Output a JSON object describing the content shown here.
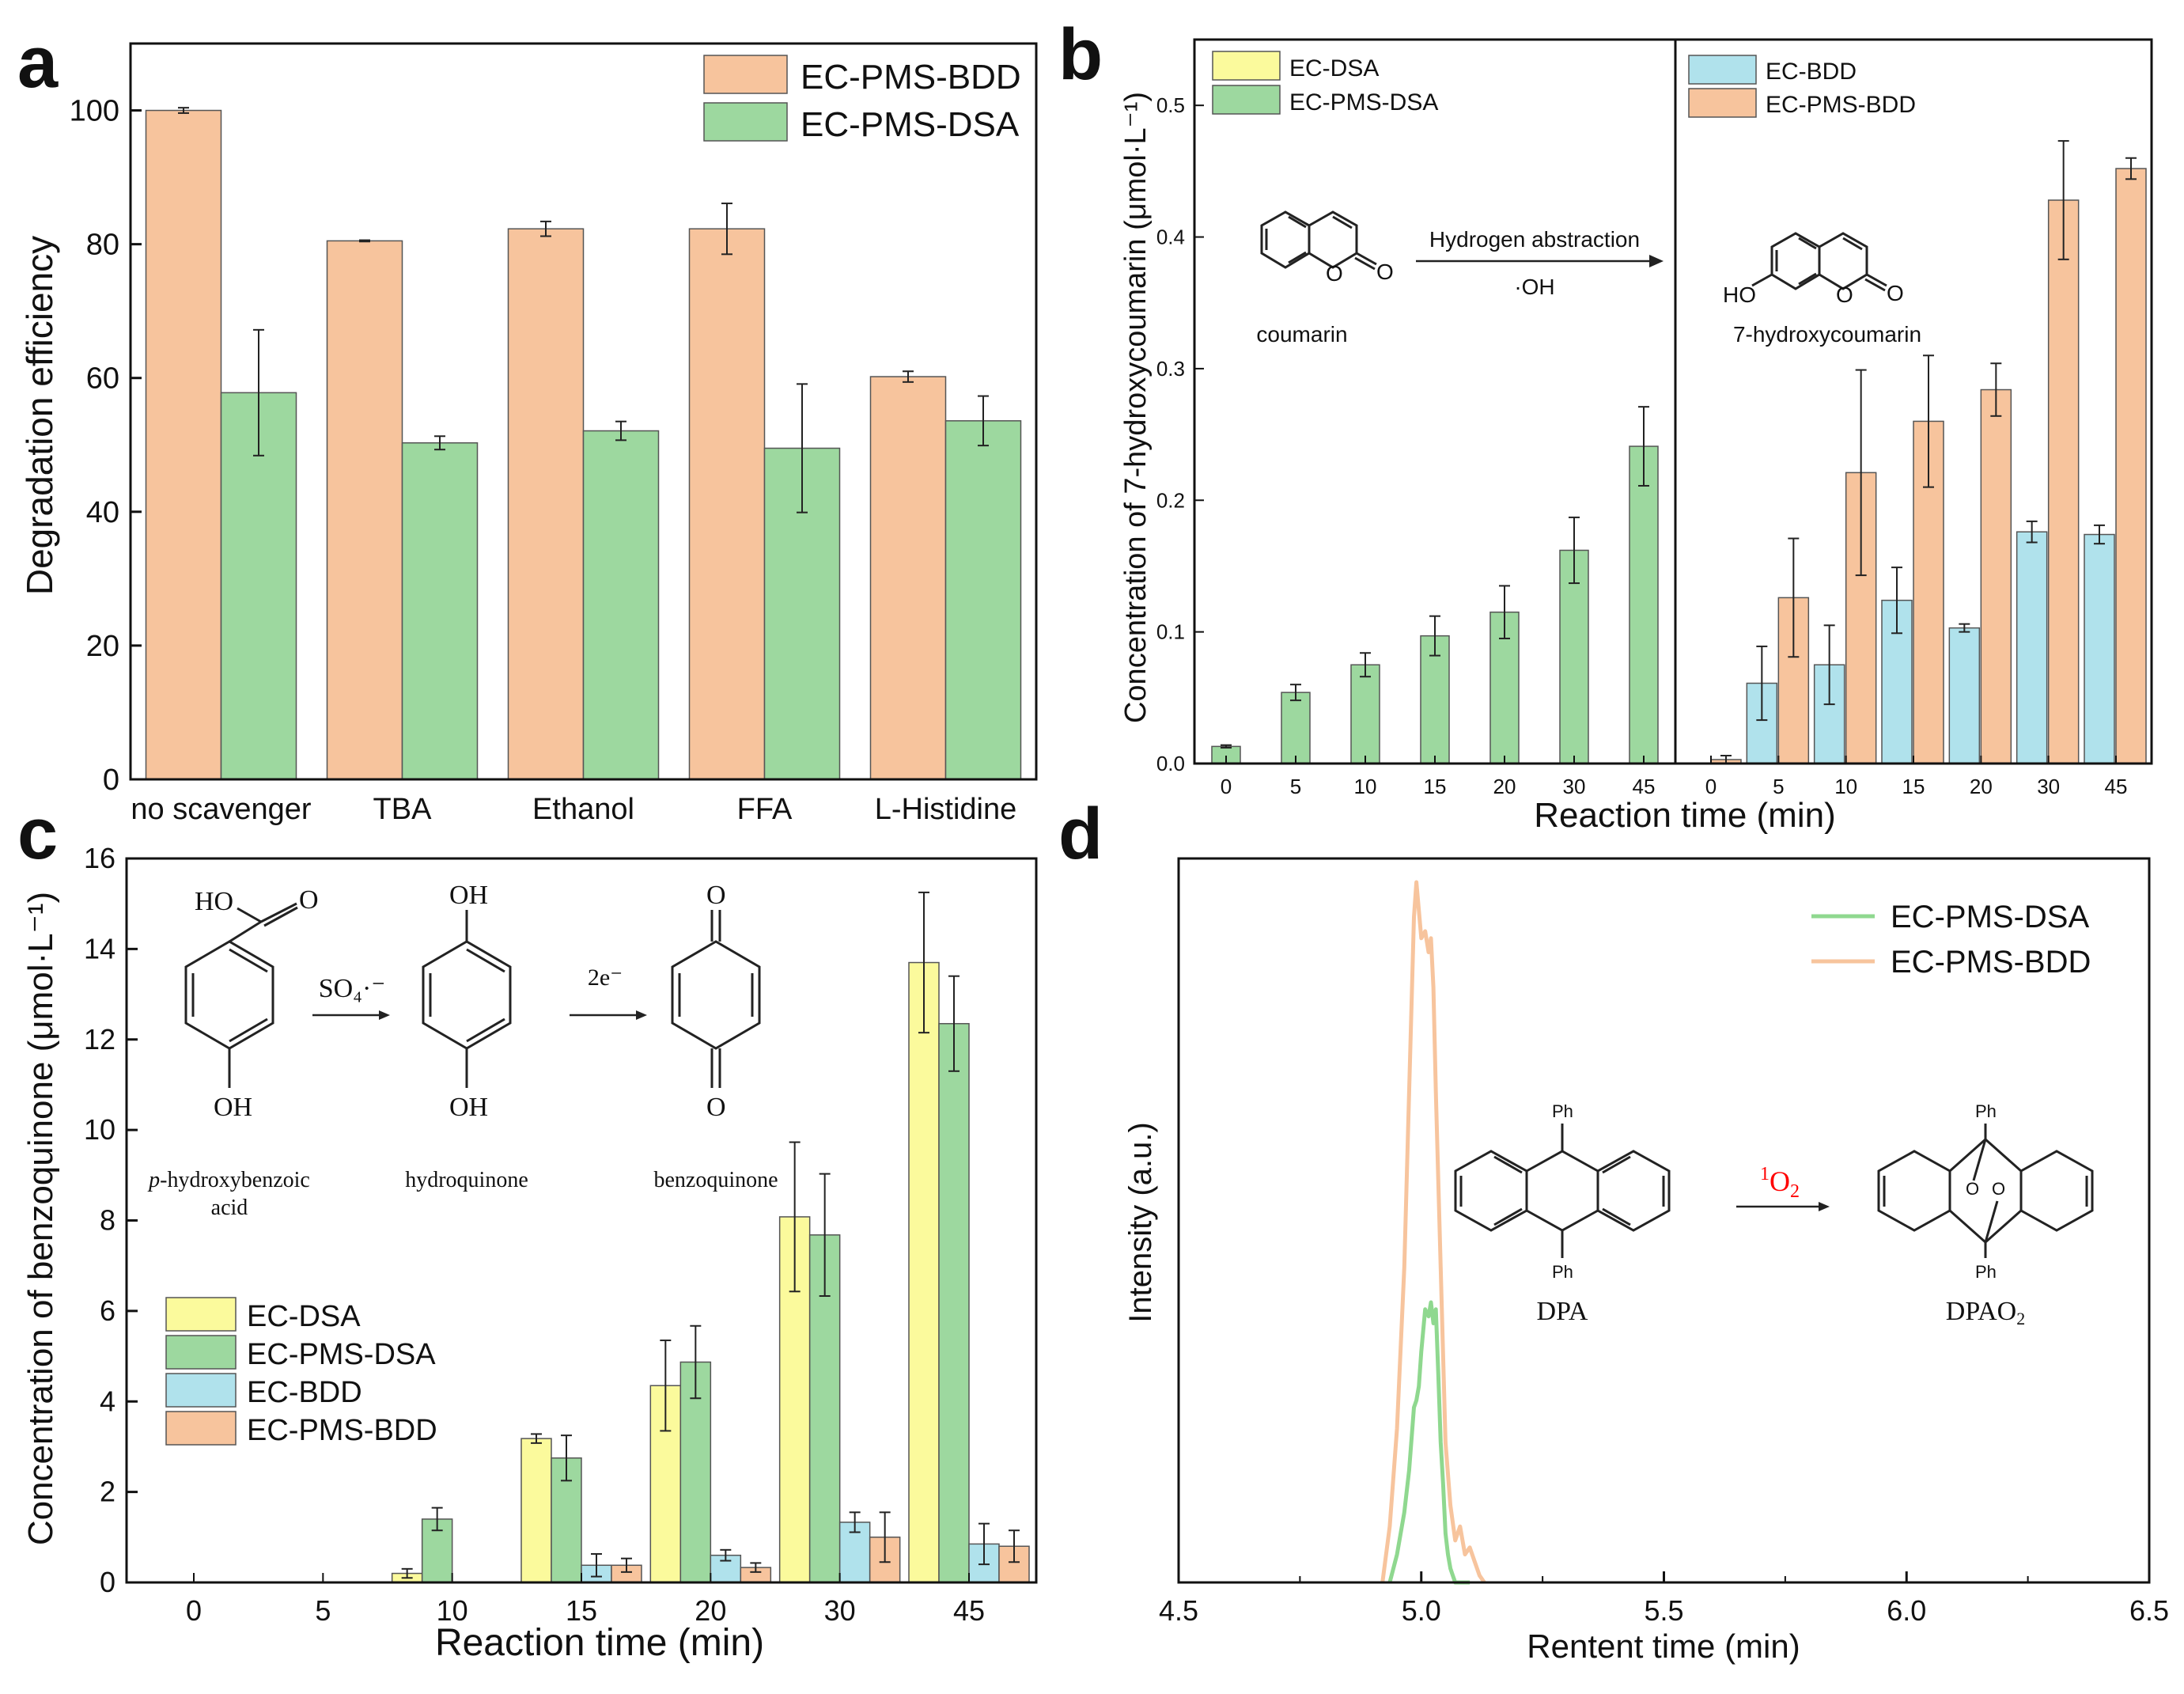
{
  "colors": {
    "orange": "#f7c49d",
    "green": "#9dd89f",
    "yellow": "#fbfa9c",
    "blue": "#b0e2ec",
    "line_orange": "#f7c49d",
    "line_green": "#8fd88f",
    "red": "#ff0000"
  },
  "chart_data": [
    {
      "panel": "a",
      "type": "bar",
      "ylabel": "Degradation efficiency",
      "ylim": [
        0,
        110
      ],
      "yticks": [
        "0",
        "20",
        "40",
        "60",
        "80",
        "100"
      ],
      "categories": [
        "no scavenger",
        "TBA",
        "Ethanol",
        "FFA",
        "L-Histidine"
      ],
      "series": [
        {
          "name": "EC-PMS-BDD",
          "color": "orange",
          "values": [
            100,
            80.5,
            82.3,
            82.3,
            60.2
          ],
          "errors": [
            0.4,
            0.1,
            1.1,
            3.8,
            0.8
          ]
        },
        {
          "name": "EC-PMS-DSA",
          "color": "green",
          "values": [
            57.8,
            50.3,
            52.1,
            49.5,
            53.6
          ],
          "errors": [
            9.4,
            1.0,
            1.4,
            9.6,
            3.7
          ]
        }
      ],
      "legend": [
        "EC-PMS-BDD",
        "EC-PMS-DSA"
      ]
    },
    {
      "panel": "b",
      "type": "bar",
      "ylabel": "Concentration of 7-hydroxycoumarin (μmol·L⁻¹)",
      "xlabel": "Reaction time (min)",
      "ylim": [
        0,
        0.55
      ],
      "yticks": [
        "0.0",
        "0.1",
        "0.2",
        "0.3",
        "0.4",
        "0.5"
      ],
      "left": {
        "categories": [
          "0",
          "5",
          "10",
          "15",
          "20",
          "30",
          "45"
        ],
        "series": [
          {
            "name": "EC-PMS-DSA",
            "color": "green",
            "values": [
              0.013,
              0.054,
              0.075,
              0.097,
              0.115,
              0.162,
              0.241
            ],
            "errors": [
              0.001,
              0.006,
              0.009,
              0.015,
              0.02,
              0.025,
              0.03
            ]
          }
        ],
        "legend": [
          "EC-DSA",
          "EC-PMS-DSA"
        ]
      },
      "right": {
        "categories": [
          "0",
          "5",
          "10",
          "15",
          "20",
          "30",
          "45"
        ],
        "series": [
          {
            "name": "EC-BDD",
            "color": "blue",
            "values": [
              null,
              0.061,
              0.075,
              0.124,
              0.103,
              0.176,
              0.174
            ],
            "errors": [
              0,
              0.028,
              0.03,
              0.025,
              0.003,
              0.008,
              0.007
            ]
          },
          {
            "name": "EC-PMS-BDD",
            "color": "orange",
            "values": [
              0.003,
              0.126,
              0.221,
              0.26,
              0.284,
              0.428,
              0.452
            ],
            "errors": [
              0.003,
              0.045,
              0.078,
              0.05,
              0.02,
              0.045,
              0.008
            ]
          }
        ],
        "legend": [
          "EC-BDD",
          "EC-PMS-BDD"
        ]
      },
      "scheme": {
        "reagent": "coumarin",
        "product": "7-hydroxycoumarin",
        "arrow_top": "Hydrogen abstraction",
        "arrow_bottom": "·OH",
        "oh_label": "HO",
        "o_label": "O"
      }
    },
    {
      "panel": "c",
      "type": "bar",
      "ylabel": "Concentration of benzoquinone (μmol·L⁻¹)",
      "xlabel": "Reaction time (min)",
      "ylim": [
        0,
        16
      ],
      "yticks": [
        "0",
        "2",
        "4",
        "6",
        "8",
        "10",
        "12",
        "14",
        "16"
      ],
      "categories": [
        "0",
        "5",
        "10",
        "15",
        "20",
        "30",
        "45"
      ],
      "series": [
        {
          "name": "EC-DSA",
          "color": "yellow",
          "values": [
            0,
            0,
            0.2,
            3.18,
            4.35,
            8.08,
            13.7
          ],
          "errors": [
            0,
            0,
            0.1,
            0.1,
            1.0,
            1.65,
            1.55
          ]
        },
        {
          "name": "EC-PMS-DSA",
          "color": "green",
          "values": [
            0,
            0,
            1.4,
            2.75,
            4.87,
            7.68,
            12.35
          ],
          "errors": [
            0,
            0,
            0.25,
            0.5,
            0.8,
            1.35,
            1.05
          ]
        },
        {
          "name": "EC-BDD",
          "color": "blue",
          "values": [
            0,
            0,
            0,
            0.38,
            0.6,
            1.33,
            0.85
          ],
          "errors": [
            0,
            0,
            0,
            0.25,
            0.12,
            0.22,
            0.45
          ]
        },
        {
          "name": "EC-PMS-BDD",
          "color": "orange",
          "values": [
            0,
            0,
            0,
            0.38,
            0.33,
            1.0,
            0.8
          ],
          "errors": [
            0,
            0,
            0,
            0.15,
            0.1,
            0.55,
            0.35
          ]
        }
      ],
      "legend": [
        "EC-DSA",
        "EC-PMS-DSA",
        "EC-BDD",
        "EC-PMS-BDD"
      ],
      "scheme": {
        "labels": [
          "p-hydroxybenzoic acid",
          "hydroquinone",
          "benzoquinone"
        ],
        "label1_italic": "p",
        "label1_rest": "-hydroxybenzoic",
        "label1_line2": "acid",
        "arrow1": "SO₄·⁻",
        "arrow2": "2e⁻",
        "atoms": [
          "HO",
          "O",
          "OH",
          "OH",
          "OH",
          "O",
          "O"
        ]
      }
    },
    {
      "panel": "d",
      "type": "line",
      "ylabel": "Intensity (a.u.)",
      "xlabel": "Rentent time (min)",
      "xlim": [
        4.5,
        6.5
      ],
      "xticks": [
        "4.5",
        "5.0",
        "5.5",
        "6.0",
        "6.5"
      ],
      "series": [
        {
          "name": "EC-PMS-DSA",
          "color": "line_green",
          "x": [
            4.935,
            4.95,
            4.965,
            4.975,
            4.985,
            4.99,
            4.995,
            5.0,
            5.008,
            5.015,
            5.02,
            5.025,
            5.03,
            5.035,
            5.04,
            5.045,
            5.05,
            5.055,
            5.06,
            5.065,
            5.07,
            5.08,
            5.1
          ],
          "y": [
            0,
            0.04,
            0.1,
            0.16,
            0.25,
            0.26,
            0.28,
            0.33,
            0.39,
            0.38,
            0.4,
            0.37,
            0.39,
            0.3,
            0.2,
            0.14,
            0.07,
            0.04,
            0.02,
            0.01,
            0,
            0,
            0
          ]
        },
        {
          "name": "EC-PMS-BDD",
          "color": "line_orange",
          "x": [
            4.92,
            4.935,
            4.95,
            4.965,
            4.975,
            4.985,
            4.99,
            4.995,
            5.0,
            5.008,
            5.015,
            5.02,
            5.025,
            5.03,
            5.04,
            5.05,
            5.06,
            5.07,
            5.08,
            5.09,
            5.1,
            5.11,
            5.12,
            5.13
          ],
          "y": [
            0,
            0.08,
            0.22,
            0.45,
            0.7,
            0.95,
            1.0,
            0.96,
            0.92,
            0.93,
            0.9,
            0.92,
            0.85,
            0.7,
            0.45,
            0.2,
            0.11,
            0.06,
            0.08,
            0.04,
            0.05,
            0.03,
            0.01,
            0
          ]
        }
      ],
      "legend": [
        "EC-PMS-DSA",
        "EC-PMS-BDD"
      ],
      "scheme": {
        "reagent": "DPA",
        "product": "DPAO",
        "product_sub": "2",
        "arrow_label_sup": "1",
        "arrow_label": "O",
        "arrow_label_sub": "2",
        "ph": "Ph",
        "o": "O"
      }
    }
  ],
  "panel_labels": [
    "a",
    "b",
    "c",
    "d"
  ]
}
